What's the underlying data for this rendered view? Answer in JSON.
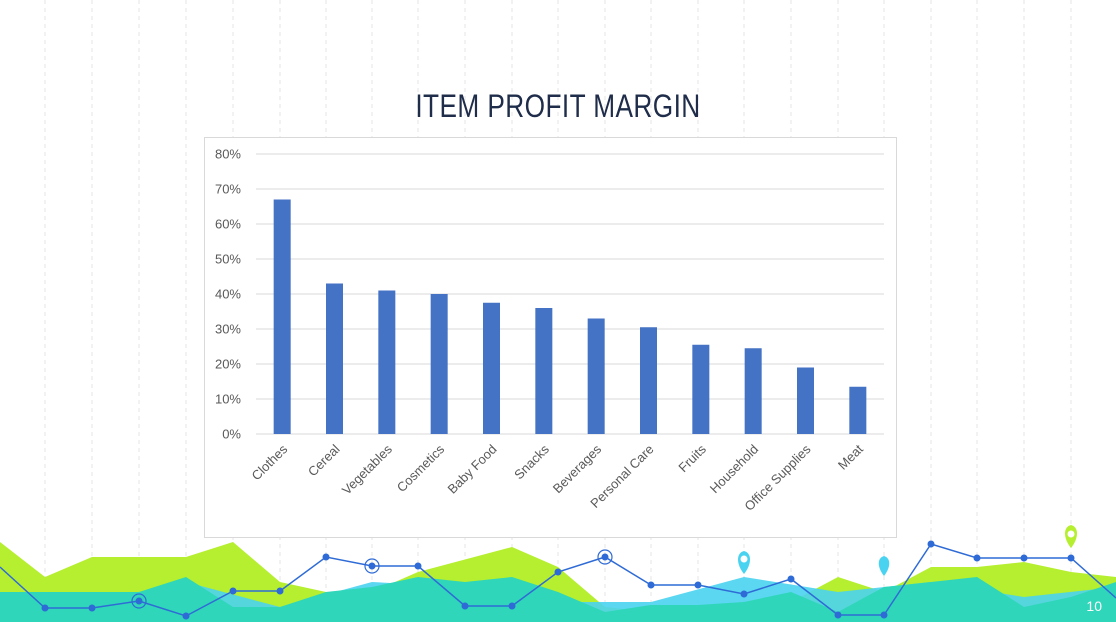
{
  "slide": {
    "title": "ITEM PROFIT MARGIN",
    "page_number": "10"
  },
  "colors": {
    "bar": "#4472c4",
    "title": "#1f2d4a",
    "footer_lime": "#b5ef2f",
    "footer_teal": "#2fd6b9",
    "footer_cyan": "#49d3f0",
    "footer_line": "#2f6bd6"
  },
  "chart_data": {
    "type": "bar",
    "categories": [
      "Clothes",
      "Cereal",
      "Vegetables",
      "Cosmetics",
      "Baby Food",
      "Snacks",
      "Beverages",
      "Personal Care",
      "Fruits",
      "Household",
      "Office Supplies",
      "Meat"
    ],
    "values": [
      67,
      43,
      41,
      40,
      37.5,
      36,
      33,
      30.5,
      25.5,
      24.5,
      19,
      13.5
    ],
    "ylim": [
      0,
      80
    ],
    "yticks": [
      "0%",
      "10%",
      "20%",
      "30%",
      "40%",
      "50%",
      "60%",
      "70%",
      "80%"
    ],
    "grid": true,
    "legend": "none"
  }
}
